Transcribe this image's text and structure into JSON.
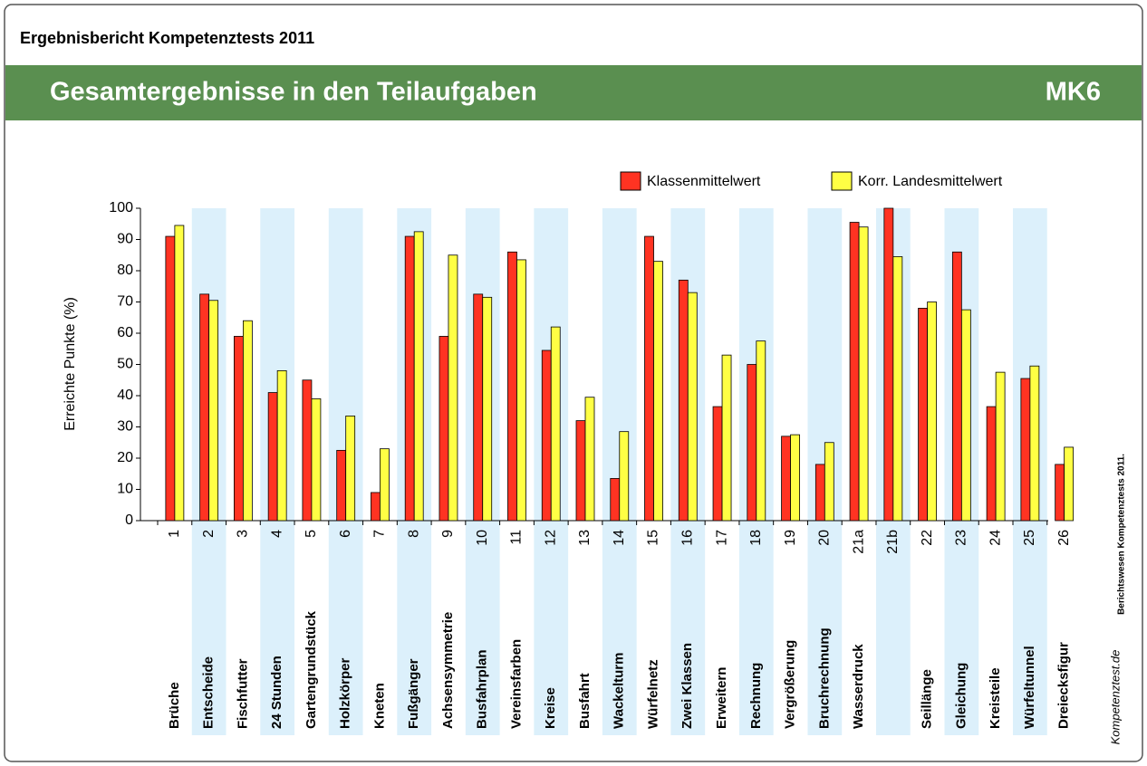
{
  "header": {
    "report": "Ergebnisbericht Kompetenztests 2011",
    "title": "Gesamtergebnisse in den Teilaufgaben",
    "code": "MK6"
  },
  "chart_data": {
    "type": "bar",
    "y_label": "Erreichte Punkte (%)",
    "categories": [
      "1",
      "2",
      "3",
      "4",
      "5",
      "6",
      "7",
      "8",
      "9",
      "10",
      "11",
      "12",
      "13",
      "14",
      "15",
      "16",
      "17",
      "18",
      "19",
      "20",
      "21a",
      "21b",
      "22",
      "23",
      "24",
      "25",
      "26"
    ],
    "task_names": [
      "Brüche",
      "Entscheide",
      "Fischfutter",
      "24 Stunden",
      "Gartengrundstück",
      "Holzkörper",
      "Kneten",
      "Fußgänger",
      "Achsensymmetrie",
      "Busfahrplan",
      "Vereinsfarben",
      "Kreise",
      "Busfahrt",
      "Wackelturm",
      "Würfelnetz",
      "Zwei Klassen",
      "Erweitern",
      "Rechnung",
      "Vergrößerung",
      "Bruchrechnung",
      "Wasserdruck",
      "",
      "Seillänge",
      "Gleichung",
      "Kreisteile",
      "Würfeltunnel",
      "Dreiecksfigur"
    ],
    "series": [
      {
        "name": "Klassenmittelwert",
        "color": "#ff3322",
        "values": [
          91,
          72.5,
          59,
          41,
          45,
          22.5,
          9,
          91,
          59,
          72.5,
          86,
          54.5,
          32,
          13.5,
          91,
          77,
          36.5,
          50,
          27,
          18,
          95.5,
          100,
          68,
          86,
          36.5,
          45.5,
          18
        ]
      },
      {
        "name": "Korr. Landesmittelwert",
        "color": "#ffff44",
        "values": [
          94.5,
          70.5,
          64,
          48,
          39,
          33.5,
          23,
          92.5,
          85,
          71.5,
          83.5,
          62,
          39.5,
          28.5,
          83,
          73,
          53,
          57.5,
          27.5,
          25,
          94,
          84.5,
          70,
          67.5,
          47.5,
          49.5,
          23.5
        ]
      }
    ],
    "ylim": [
      0,
      100
    ],
    "yticks": [
      0,
      10,
      20,
      30,
      40,
      50,
      60,
      70,
      80,
      90,
      100
    ],
    "band_shading": "#dcf0fb",
    "legend": "top-right"
  },
  "footer": {
    "credit": "Berichtswesen Kompetenztests 2011.",
    "logo": "Kompetenztest.de"
  }
}
